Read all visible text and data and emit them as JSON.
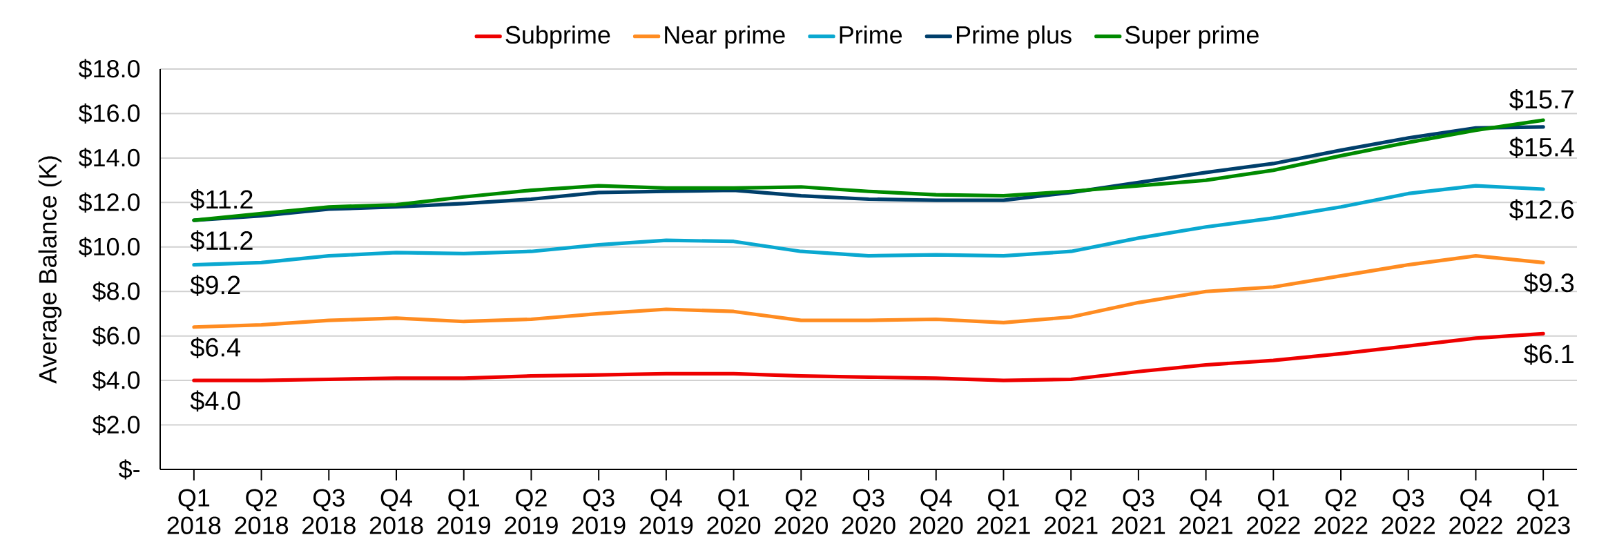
{
  "chart_data": {
    "type": "line",
    "ylabel": "Average Balance (K)",
    "categories": [
      "Q1 2018",
      "Q2 2018",
      "Q3 2018",
      "Q4 2018",
      "Q1 2019",
      "Q2 2019",
      "Q3 2019",
      "Q4 2019",
      "Q1 2020",
      "Q2 2020",
      "Q3 2020",
      "Q4 2020",
      "Q1 2021",
      "Q2 2021",
      "Q3 2021",
      "Q4 2021",
      "Q1 2022",
      "Q2 2022",
      "Q3 2022",
      "Q4 2022",
      "Q1 2023"
    ],
    "series": [
      {
        "name": "Subprime",
        "color": "#ee0000",
        "values": [
          4.0,
          4.0,
          4.05,
          4.1,
          4.1,
          4.2,
          4.25,
          4.3,
          4.3,
          4.2,
          4.15,
          4.1,
          4.0,
          4.05,
          4.4,
          4.7,
          4.9,
          5.2,
          5.55,
          5.9,
          6.1
        ],
        "value_labels": [
          "$4.0",
          null,
          null,
          null,
          null,
          null,
          null,
          null,
          null,
          null,
          null,
          null,
          null,
          null,
          null,
          null,
          null,
          null,
          null,
          null,
          "$6.1"
        ]
      },
      {
        "name": "Near prime",
        "color": "#ff8c21",
        "values": [
          6.4,
          6.5,
          6.7,
          6.8,
          6.65,
          6.75,
          7.0,
          7.2,
          7.1,
          6.7,
          6.7,
          6.75,
          6.6,
          6.85,
          7.5,
          8.0,
          8.2,
          8.7,
          9.2,
          9.6,
          9.3
        ],
        "value_labels": [
          "$6.4",
          null,
          null,
          null,
          null,
          null,
          null,
          null,
          null,
          null,
          null,
          null,
          null,
          null,
          null,
          null,
          null,
          null,
          null,
          null,
          "$9.3"
        ]
      },
      {
        "name": "Prime",
        "color": "#0aa8d0",
        "values": [
          9.2,
          9.3,
          9.6,
          9.75,
          9.7,
          9.8,
          10.1,
          10.3,
          10.25,
          9.8,
          9.6,
          9.65,
          9.6,
          9.8,
          10.4,
          10.9,
          11.3,
          11.8,
          12.4,
          12.75,
          12.6
        ],
        "value_labels": [
          "$9.2",
          null,
          null,
          null,
          null,
          null,
          null,
          null,
          null,
          null,
          null,
          null,
          null,
          null,
          null,
          null,
          null,
          null,
          null,
          null,
          "$12.6"
        ]
      },
      {
        "name": "Prime plus",
        "color": "#003f6b",
        "values": [
          11.2,
          11.4,
          11.7,
          11.8,
          11.95,
          12.15,
          12.45,
          12.5,
          12.55,
          12.3,
          12.15,
          12.1,
          12.1,
          12.45,
          12.9,
          13.35,
          13.75,
          14.35,
          14.9,
          15.35,
          15.4
        ],
        "value_labels": [
          "$11.2",
          null,
          null,
          null,
          null,
          null,
          null,
          null,
          null,
          null,
          null,
          null,
          null,
          null,
          null,
          null,
          null,
          null,
          null,
          null,
          "$15.4"
        ]
      },
      {
        "name": "Super prime",
        "color": "#008a00",
        "values": [
          11.2,
          11.5,
          11.8,
          11.9,
          12.25,
          12.55,
          12.75,
          12.65,
          12.65,
          12.7,
          12.5,
          12.35,
          12.3,
          12.5,
          12.75,
          13.0,
          13.45,
          14.1,
          14.7,
          15.25,
          15.7
        ],
        "value_labels": [
          "$11.2",
          null,
          null,
          null,
          null,
          null,
          null,
          null,
          null,
          null,
          null,
          null,
          null,
          null,
          null,
          null,
          null,
          null,
          null,
          null,
          "$15.7"
        ]
      }
    ],
    "ylim": [
      0,
      18
    ],
    "yticks": [
      {
        "value": 0,
        "label": "$-"
      },
      {
        "value": 2,
        "label": "$2.0"
      },
      {
        "value": 4,
        "label": "$4.0"
      },
      {
        "value": 6,
        "label": "$6.0"
      },
      {
        "value": 8,
        "label": "$8.0"
      },
      {
        "value": 10,
        "label": "$10.0"
      },
      {
        "value": 12,
        "label": "$12.0"
      },
      {
        "value": 14,
        "label": "$14.0"
      },
      {
        "value": 16,
        "label": "$16.0"
      },
      {
        "value": 18,
        "label": "$18.0"
      }
    ],
    "grid": "y",
    "legend": "top",
    "marker": "none",
    "line_style": "solid"
  }
}
